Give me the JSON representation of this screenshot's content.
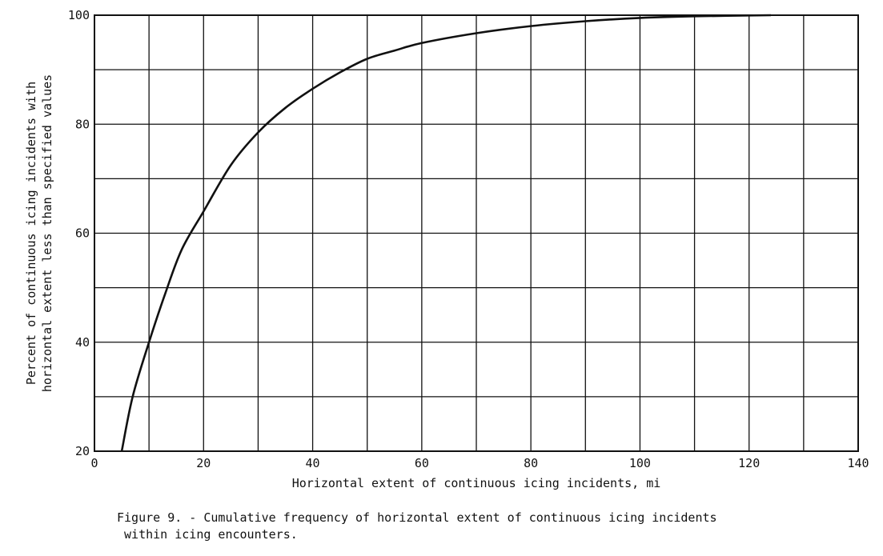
{
  "figure": {
    "caption_line1": "Figure 9. - Cumulative frequency of horizontal extent of continuous icing incidents",
    "caption_line2": " within icing encounters."
  },
  "chart_data": {
    "type": "line",
    "xlabel": "Horizontal extent of continuous icing incidents, mi",
    "ylabel_line1": "Percent of continuous icing incidents with",
    "ylabel_line2": "horizontal extent less than specified values",
    "xlim": [
      0,
      140
    ],
    "ylim": [
      20,
      100
    ],
    "x_ticks": [
      0,
      20,
      40,
      60,
      80,
      100,
      120,
      140
    ],
    "y_ticks": [
      20,
      40,
      60,
      80,
      100
    ],
    "x_grid_step": 10,
    "y_grid_step": 10,
    "grid": true,
    "series": [
      {
        "x": [
          5,
          7,
          10,
          13,
          16,
          20,
          25,
          30,
          35,
          40,
          45,
          50,
          55,
          60,
          70,
          80,
          90,
          100,
          110,
          124
        ],
        "values": [
          20,
          30,
          40,
          49,
          57,
          64,
          72.5,
          78.5,
          83,
          86.5,
          89.5,
          92,
          93.5,
          94.9,
          96.7,
          98,
          98.9,
          99.5,
          99.8,
          100
        ]
      }
    ]
  }
}
